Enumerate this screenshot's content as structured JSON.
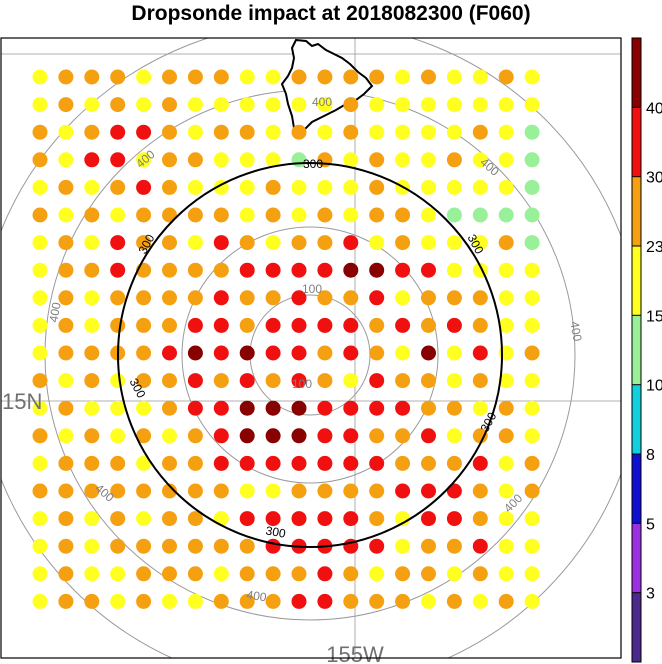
{
  "title": "Dropsonde impact at 2018082300 (F060)",
  "axes": {
    "lat_label": "15N",
    "lon_label": "155W"
  },
  "contours": {
    "labels": [
      "100",
      "100",
      "300",
      "300",
      "300",
      "300",
      "300",
      "300",
      "400",
      "400",
      "400",
      "400",
      "400",
      "400",
      "400",
      "400"
    ]
  },
  "colorbar": {
    "colors": [
      "#4B2A8C",
      "#9B30E0",
      "#1010D0",
      "#10D0E0",
      "#98F098",
      "#FFFF20",
      "#F5A010",
      "#F01010",
      "#880000"
    ],
    "tick_labels": [
      "3",
      "5",
      "8",
      "10",
      "15",
      "23",
      "30",
      "40"
    ]
  },
  "chart_data": {
    "type": "scatter",
    "title": "Dropsonde impact at 2018082300 (F060)",
    "grid_columns": 20,
    "grid_rows": 20,
    "legend_placement": "right",
    "color_levels": [
      3,
      5,
      8,
      10,
      15,
      23,
      30,
      40
    ],
    "category_key": {
      "Y": "15-23",
      "O": "23-30",
      "R": "30-40",
      "D": ">40",
      "G": "10-15"
    },
    "rows": [
      "YOOOYOOOYYOOOOYOYYOY",
      "YOYOYOYYYYYYOYYYYYYY",
      "OYORROYOOYOYOYYYYOYG",
      "OYRRYOOYYYGOYOYYOYYG",
      "YOYOROYYYOYYYOYYYYYG",
      "OYOYOOOOYOYOYOOYGGGG",
      "YOYROOYROYOORYOYYYOG",
      "YOOROOOORRRRDDRRYYYY",
      "YOYOOOOROOROORYOOOYY",
      "YOYOOORRORRRROROROYY",
      "YOOOORDRDRROROYDYRYO",
      "OYOYOOROROROYROOYOYY",
      "YOYYYORRDDDRRRROOYOY",
      "OYOYOYORDDDRROORYOOY",
      "YOOOYOORRRRRRROOORYO",
      "OOOOOOOOYYOOOORRROYO",
      "YOYOYOOYRRRRROYRROYY",
      "YOYOOOOOORRRRRYOORYY",
      "YOYYOOOYOOOROYOOYOYY",
      "YOOYOYYOOORROOOYOYOY"
    ]
  }
}
